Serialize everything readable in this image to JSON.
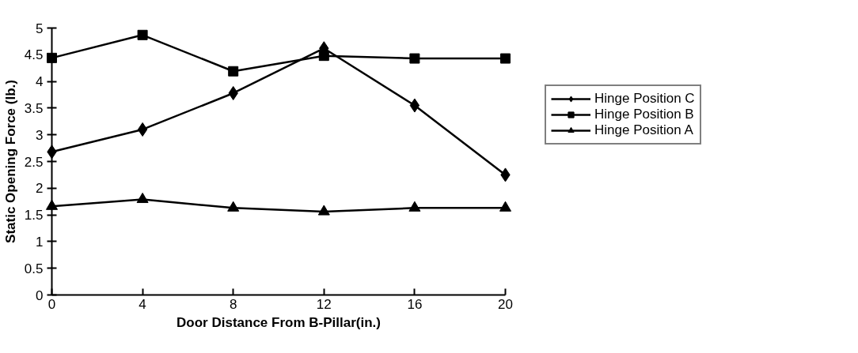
{
  "chart_data": {
    "type": "line",
    "xlabel": "Door Distance From B-Pillar(in.)",
    "ylabel": "Static Opening Force (lb.)",
    "x": [
      0,
      4,
      8,
      12,
      16,
      20
    ],
    "series": [
      {
        "name": "Hinge Position C",
        "color": "#000000",
        "marker": "diamond",
        "values": [
          2.68,
          3.1,
          3.78,
          4.62,
          3.55,
          2.25
        ]
      },
      {
        "name": "Hinge Position B",
        "color": "#000000",
        "marker": "square",
        "values": [
          4.44,
          4.87,
          4.19,
          4.48,
          4.43,
          4.43
        ]
      },
      {
        "name": "Hinge Position A",
        "color": "#000000",
        "marker": "triangle",
        "values": [
          1.66,
          1.79,
          1.63,
          1.56,
          1.63,
          1.63
        ]
      }
    ],
    "xlim": [
      0,
      20
    ],
    "xticks": [
      0,
      4,
      8,
      12,
      16,
      20
    ],
    "ylim": [
      0,
      5
    ],
    "yticks": [
      0,
      {
        "value": 0.5,
        "label": "0.5"
      },
      1,
      {
        "value": 1.5,
        "label": "1.5"
      },
      2,
      {
        "value": 2.5,
        "label": "2.5"
      },
      3,
      {
        "value": 3.5,
        "label": "3.5"
      },
      4,
      {
        "value": 4.5,
        "label": "4.5"
      },
      5
    ],
    "grid": false,
    "legend": "right",
    "line_style": "solid"
  }
}
